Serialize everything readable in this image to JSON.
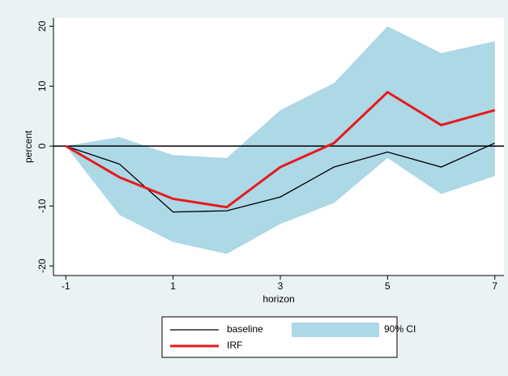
{
  "chart_data": {
    "type": "line",
    "x_label": "horizon",
    "y_label": "percent",
    "x": [
      -1,
      0,
      1,
      2,
      3,
      4,
      5,
      6,
      7
    ],
    "series": [
      {
        "name": "baseline",
        "color": "#000000",
        "values": [
          0,
          -3,
          -11,
          -10.8,
          -8.5,
          -3.5,
          -1,
          -3.5,
          0.5
        ]
      },
      {
        "name": "90% CI",
        "color": "#add8e6",
        "lower": [
          0,
          -11.5,
          -16,
          -18,
          -13,
          -9.5,
          -2,
          -8,
          -5
        ],
        "upper": [
          0,
          1.5,
          -1.5,
          -2,
          6,
          10.5,
          20,
          15.5,
          17.5
        ]
      },
      {
        "name": "IRF",
        "color": "#e8191b",
        "values": [
          0,
          -5.2,
          -8.8,
          -10.2,
          -3.5,
          0.5,
          9,
          3.5,
          6
        ]
      }
    ],
    "hline": 0,
    "xlim": [
      -1.23,
      7.17
    ],
    "xticks": [
      -1,
      1,
      3,
      5,
      7
    ],
    "ylim": [
      -21.6,
      21.4
    ],
    "yticks": [
      -20,
      -10,
      0,
      10,
      20
    ],
    "legend": "bottom"
  }
}
